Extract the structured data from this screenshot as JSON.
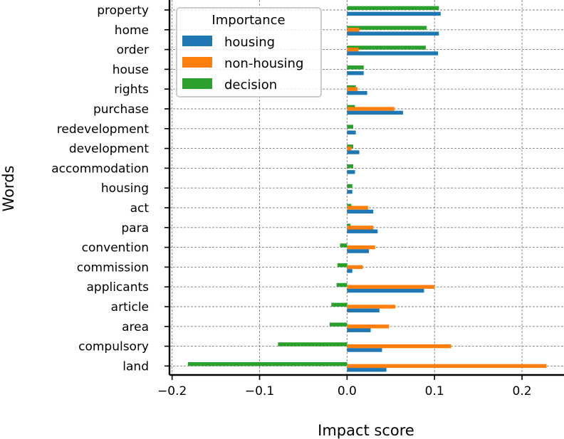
{
  "chart_data": {
    "type": "bar",
    "orientation": "horizontal",
    "categories": [
      "property",
      "home",
      "order",
      "house",
      "rights",
      "purchase",
      "redevelopment",
      "development",
      "accommodation",
      "housing",
      "act",
      "para",
      "convention",
      "commission",
      "applicants",
      "article",
      "area",
      "compulsory",
      "land"
    ],
    "series": [
      {
        "name": "housing",
        "color": "#1f77b4",
        "values": [
          0.107,
          0.105,
          0.104,
          0.019,
          0.023,
          0.064,
          0.01,
          0.014,
          0.009,
          0.006,
          0.03,
          0.035,
          0.025,
          0.006,
          0.088,
          0.037,
          0.027,
          0.04,
          0.045
        ]
      },
      {
        "name": "non-housing",
        "color": "#ff7f0e",
        "values": [
          0.0,
          0.014,
          0.013,
          0.0,
          0.012,
          0.054,
          0.0,
          0.005,
          0.0,
          0.0,
          0.024,
          0.03,
          0.032,
          0.018,
          0.1,
          0.055,
          0.048,
          0.119,
          0.228
        ]
      },
      {
        "name": "decision",
        "color": "#2ca02c",
        "values": [
          0.105,
          0.091,
          0.09,
          0.019,
          0.01,
          0.009,
          0.007,
          0.007,
          0.007,
          0.006,
          0.005,
          0.004,
          -0.008,
          -0.011,
          -0.012,
          -0.018,
          -0.02,
          -0.079,
          -0.182
        ]
      }
    ],
    "xlabel": "Impact score",
    "ylabel": "Words",
    "xlim": [
      -0.203,
      0.248
    ],
    "xticks": [
      -0.2,
      -0.1,
      0.0,
      0.1,
      0.2
    ],
    "xtick_labels": [
      "−0.2",
      "−0.1",
      "0.0",
      "0.1",
      "0.2"
    ],
    "grid": true,
    "legend": {
      "title": "Importance",
      "placement": "top-left"
    }
  }
}
